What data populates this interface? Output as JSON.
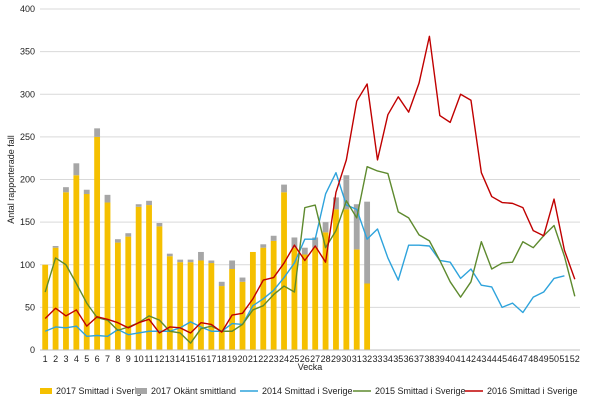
{
  "chart_data": {
    "type": "bar",
    "title": "",
    "xlabel": "Vecka",
    "ylabel": "Antal rapporterade fall",
    "ylim": [
      0,
      400
    ],
    "yticks": [
      0,
      50,
      100,
      150,
      200,
      250,
      300,
      350,
      400
    ],
    "grid": true,
    "legend_position": "bottom",
    "categories": [
      "1",
      "2",
      "3",
      "4",
      "5",
      "6",
      "7",
      "8",
      "9",
      "10",
      "11",
      "12",
      "13",
      "14",
      "15",
      "16",
      "17",
      "18",
      "19",
      "20",
      "21",
      "22",
      "23",
      "24",
      "25",
      "26",
      "27",
      "28",
      "29",
      "30",
      "31",
      "32",
      "33",
      "34",
      "35",
      "36",
      "37",
      "38",
      "39",
      "40",
      "41",
      "42",
      "43",
      "44",
      "45",
      "46",
      "47",
      "48",
      "49",
      "50",
      "51",
      "52"
    ],
    "stacked_bars": [
      {
        "name": "2017 Smittad i Sverige",
        "color": "#f5c000",
        "values": [
          100,
          120,
          185,
          205,
          183,
          250,
          173,
          126,
          133,
          168,
          170,
          145,
          110,
          103,
          103,
          105,
          102,
          75,
          95,
          80,
          115,
          120,
          128,
          185,
          120,
          112,
          120,
          138,
          165,
          165,
          118,
          78
        ]
      },
      {
        "name": "2017 Okänt smittland",
        "color": "#a6a6a6",
        "values": [
          0,
          2,
          6,
          14,
          5,
          10,
          9,
          4,
          4,
          3,
          5,
          4,
          3,
          3,
          3,
          10,
          3,
          5,
          10,
          5,
          0,
          4,
          6,
          9,
          12,
          8,
          12,
          12,
          14,
          40,
          53,
          96
        ]
      }
    ],
    "lines": [
      {
        "name": "2014 Smittad i Sverige",
        "color": "#2ea3dc",
        "values": [
          22,
          27,
          26,
          28,
          16,
          17,
          16,
          24,
          18,
          20,
          22,
          22,
          22,
          26,
          33,
          27,
          22,
          22,
          31,
          30,
          52,
          60,
          70,
          85,
          102,
          130,
          130,
          183,
          208,
          170,
          165,
          130,
          142,
          108,
          82,
          123,
          123,
          122,
          105,
          103,
          84,
          95,
          76,
          74,
          50,
          55,
          44,
          62,
          68,
          84,
          87,
          null
        ]
      },
      {
        "name": "2015 Smittad i Sverige",
        "color": "#5e8a2e",
        "values": [
          68,
          108,
          100,
          78,
          55,
          38,
          35,
          23,
          27,
          32,
          40,
          35,
          22,
          20,
          8,
          25,
          28,
          22,
          22,
          30,
          47,
          52,
          65,
          75,
          68,
          167,
          170,
          120,
          140,
          175,
          155,
          215,
          210,
          207,
          162,
          155,
          135,
          128,
          105,
          80,
          62,
          80,
          127,
          95,
          102,
          103,
          127,
          120,
          134,
          146,
          110,
          63
        ]
      },
      {
        "name": "2016 Smittad i Sverige",
        "color": "#c00000",
        "values": [
          37,
          49,
          40,
          47,
          28,
          39,
          36,
          32,
          26,
          32,
          36,
          20,
          27,
          26,
          20,
          32,
          30,
          21,
          41,
          43,
          60,
          82,
          85,
          102,
          123,
          105,
          122,
          103,
          185,
          223,
          292,
          312,
          223,
          276,
          297,
          279,
          313,
          368,
          275,
          267,
          300,
          293,
          208,
          180,
          173,
          172,
          167,
          140,
          134,
          177,
          117,
          83
        ]
      }
    ]
  },
  "legend": [
    {
      "label": "2017 Smittad i Sverige",
      "kind": "bar",
      "color": "#f5c000"
    },
    {
      "label": "2017 Okänt smittland",
      "kind": "bar",
      "color": "#a6a6a6"
    },
    {
      "label": "2014 Smittad i Sverige",
      "kind": "line",
      "color": "#2ea3dc"
    },
    {
      "label": "2015 Smittad i Sverige",
      "kind": "line",
      "color": "#5e8a2e"
    },
    {
      "label": "2016 Smittad i Sverige",
      "kind": "line",
      "color": "#c00000"
    }
  ]
}
